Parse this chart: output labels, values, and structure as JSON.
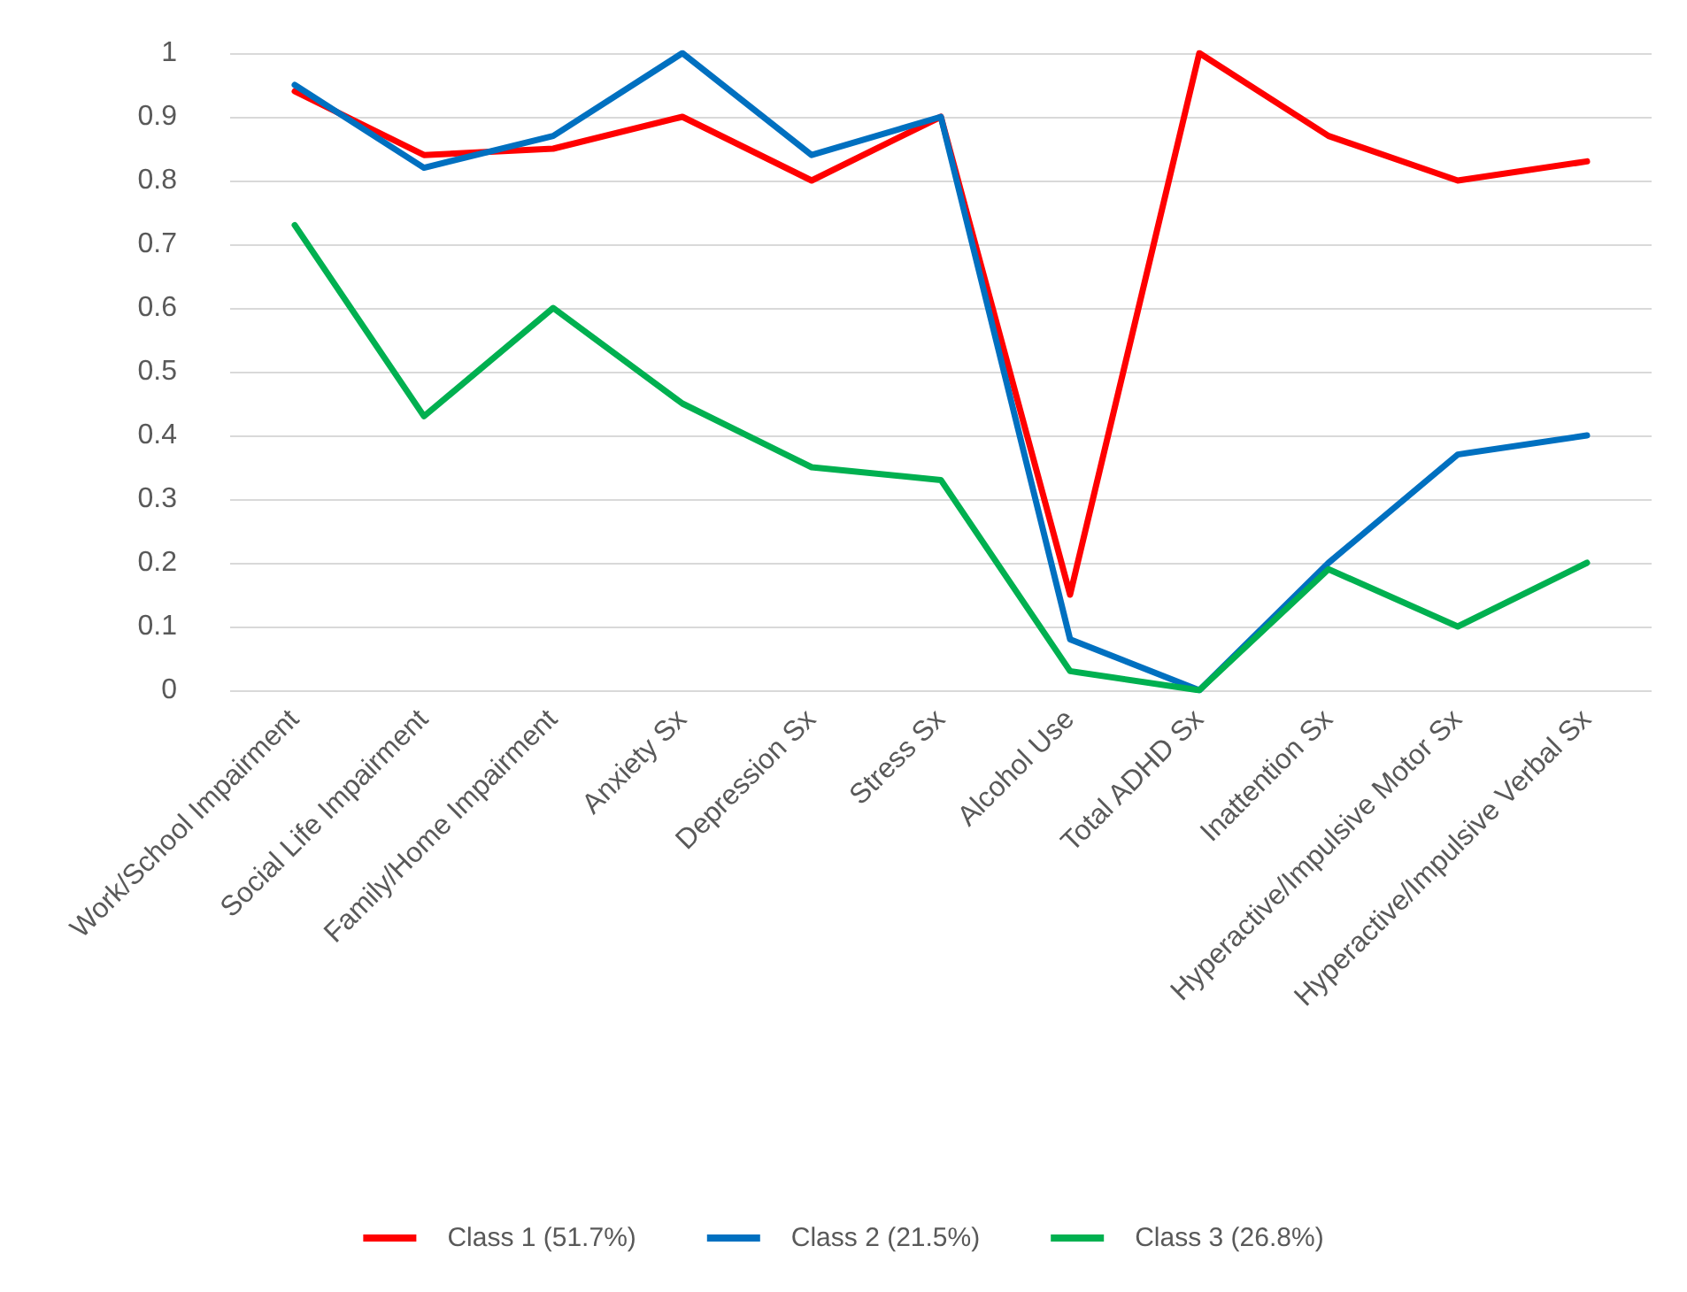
{
  "chart_data": {
    "type": "line",
    "categories": [
      "Work/School Impairment",
      "Social Life Impairment",
      "Family/Home Impairment",
      "Anxiety Sx",
      "Depression Sx",
      "Stress Sx",
      "Alcohol Use",
      "Total ADHD Sx",
      "Inattention Sx",
      "Hyperactive/Impulsive Motor Sx",
      "Hyperactive/Impulsive Verbal Sx"
    ],
    "series": [
      {
        "name": "Class 1 (51.7%)",
        "color": "#ff0000",
        "values": [
          0.94,
          0.84,
          0.85,
          0.9,
          0.8,
          0.9,
          0.15,
          1.0,
          0.87,
          0.8,
          0.83
        ]
      },
      {
        "name": "Class 2 (21.5%)",
        "color": "#0070c0",
        "values": [
          0.95,
          0.82,
          0.87,
          1.0,
          0.84,
          0.9,
          0.08,
          0.0,
          0.2,
          0.37,
          0.4
        ]
      },
      {
        "name": "Class 3 (26.8%)",
        "color": "#00b050",
        "values": [
          0.73,
          0.43,
          0.6,
          0.45,
          0.35,
          0.33,
          0.03,
          0.0,
          0.19,
          0.1,
          0.2
        ]
      }
    ],
    "ylim": [
      0,
      1
    ],
    "yticks": [
      0,
      0.1,
      0.2,
      0.3,
      0.4,
      0.5,
      0.6,
      0.7,
      0.8,
      0.9,
      1
    ],
    "grid": "y",
    "legend": "bottom",
    "marker": "none",
    "line_style": "solid"
  }
}
